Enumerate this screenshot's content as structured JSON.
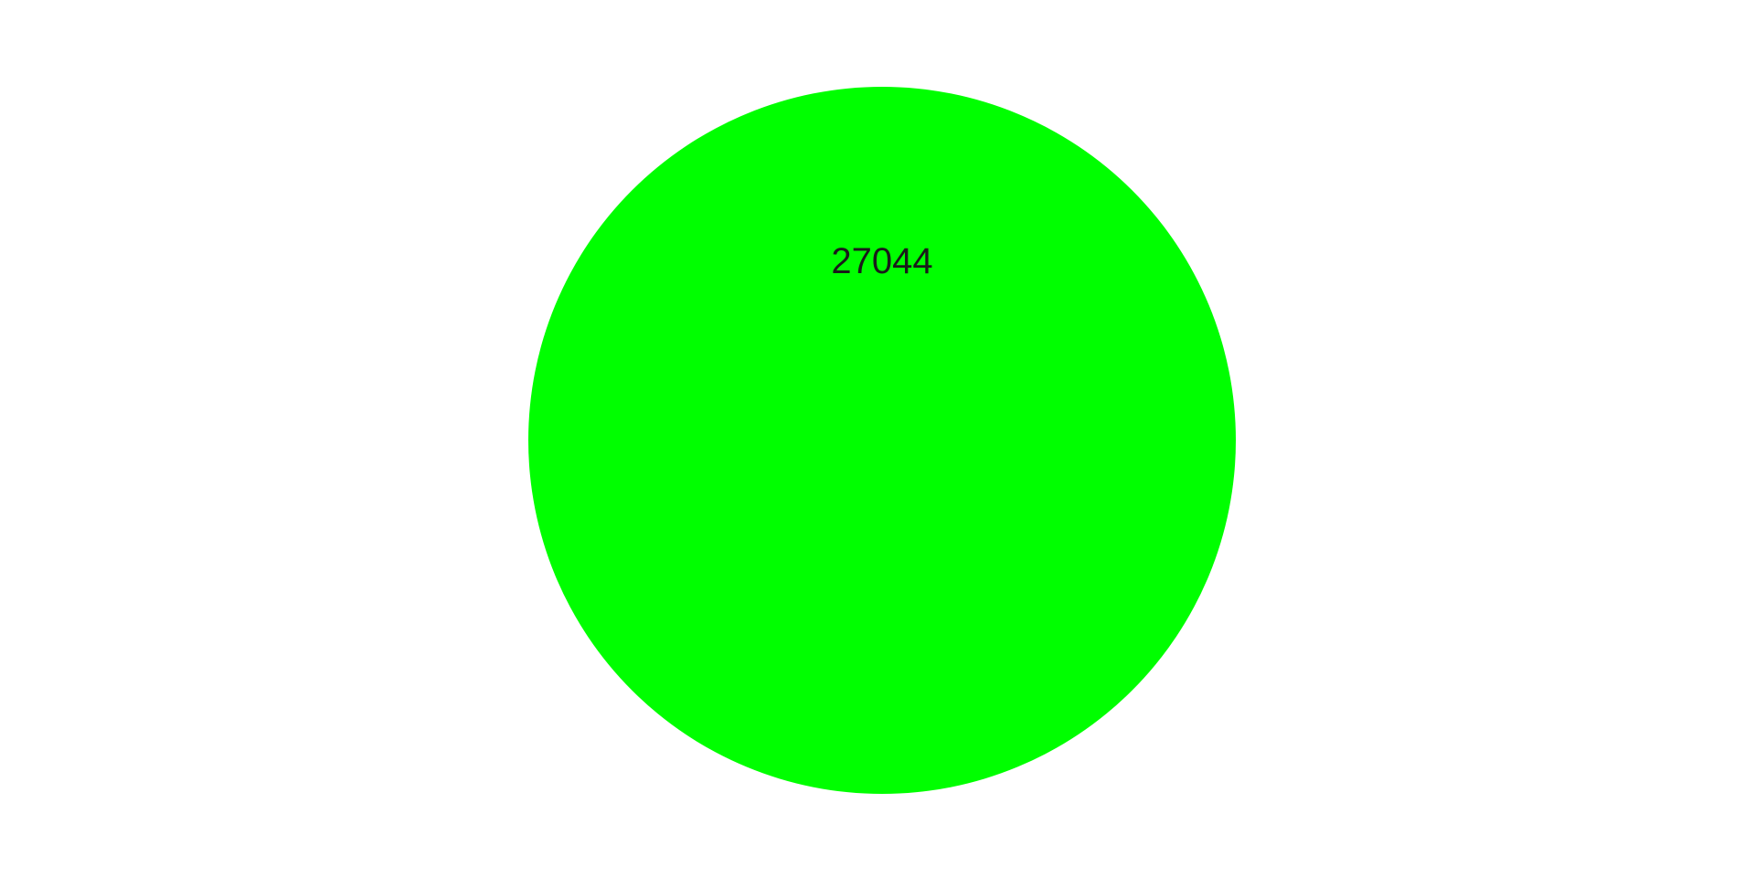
{
  "chart_data": {
    "type": "pie",
    "slices": [
      {
        "label": "27044",
        "value": 27044,
        "color": "#00ff00"
      }
    ],
    "title": ""
  }
}
